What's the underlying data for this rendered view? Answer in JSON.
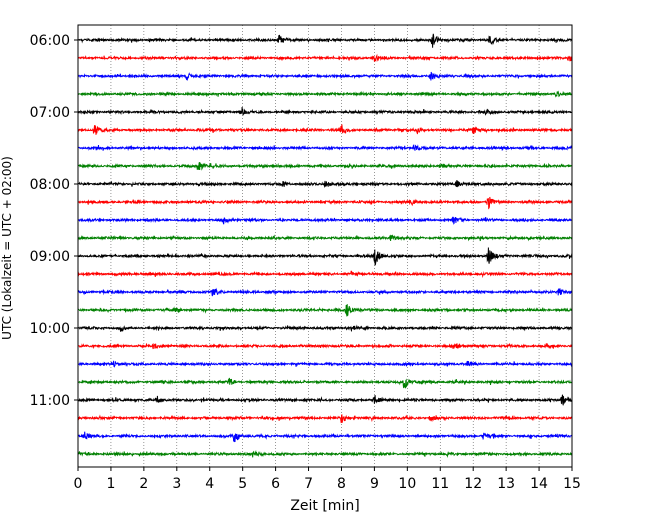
{
  "chart_data": {
    "type": "line",
    "title": "",
    "xlabel": "Zeit  [min]",
    "ylabel": "UTC (Lokalzeit = UTC + 02:00)",
    "xlim": [
      0,
      15
    ],
    "x_ticks": [
      0,
      1,
      2,
      3,
      4,
      5,
      6,
      7,
      8,
      9,
      10,
      11,
      12,
      13,
      14,
      15
    ],
    "y_tick_labels": [
      "06:00",
      "07:00",
      "08:00",
      "09:00",
      "10:00",
      "11:00"
    ],
    "grid": "vertical-dotted",
    "legend": "none",
    "colors": [
      "#000000",
      "#ff0000",
      "#0000ff",
      "#008000"
    ],
    "trace_interval_minutes": 15,
    "traces": [
      {
        "start": "06:00",
        "color": "#000000",
        "events": [
          [
            6.1,
            1.0
          ],
          [
            10.75,
            1.3
          ],
          [
            12.5,
            0.7
          ]
        ]
      },
      {
        "start": "06:15",
        "color": "#ff0000",
        "events": [
          [
            9.0,
            0.4
          ],
          [
            14.9,
            0.6
          ]
        ]
      },
      {
        "start": "06:30",
        "color": "#0000ff",
        "events": [
          [
            10.7,
            0.8
          ],
          [
            3.3,
            0.5
          ]
        ]
      },
      {
        "start": "06:45",
        "color": "#008000",
        "events": [
          [
            14.5,
            0.4
          ]
        ]
      },
      {
        "start": "07:00",
        "color": "#000000",
        "events": [
          [
            4.95,
            0.8
          ],
          [
            12.4,
            0.4
          ]
        ]
      },
      {
        "start": "07:15",
        "color": "#ff0000",
        "events": [
          [
            0.5,
            0.9
          ],
          [
            8.0,
            0.6
          ],
          [
            10.3,
            0.5
          ],
          [
            12.0,
            0.5
          ]
        ]
      },
      {
        "start": "07:30",
        "color": "#0000ff",
        "events": [
          [
            10.2,
            0.5
          ]
        ]
      },
      {
        "start": "07:45",
        "color": "#008000",
        "events": [
          [
            3.65,
            1.1
          ],
          [
            11.0,
            0.4
          ]
        ]
      },
      {
        "start": "08:00",
        "color": "#000000",
        "events": [
          [
            6.2,
            0.6
          ],
          [
            7.5,
            0.7
          ],
          [
            11.5,
            0.5
          ]
        ]
      },
      {
        "start": "08:15",
        "color": "#ff0000",
        "events": [
          [
            10.1,
            0.5
          ],
          [
            12.45,
            1.0
          ]
        ]
      },
      {
        "start": "08:30",
        "color": "#0000ff",
        "events": [
          [
            4.4,
            0.6
          ],
          [
            11.4,
            0.5
          ]
        ]
      },
      {
        "start": "08:45",
        "color": "#008000",
        "events": [
          [
            9.5,
            0.5
          ]
        ]
      },
      {
        "start": "09:00",
        "color": "#000000",
        "events": [
          [
            9.0,
            1.6
          ],
          [
            12.45,
            1.5
          ]
        ]
      },
      {
        "start": "09:15",
        "color": "#ff0000",
        "events": [
          [
            8.3,
            0.3
          ]
        ]
      },
      {
        "start": "09:30",
        "color": "#0000ff",
        "events": [
          [
            4.1,
            0.7
          ],
          [
            14.6,
            0.6
          ]
        ]
      },
      {
        "start": "09:45",
        "color": "#008000",
        "events": [
          [
            8.15,
            1.0
          ],
          [
            2.9,
            0.5
          ]
        ]
      },
      {
        "start": "10:00",
        "color": "#000000",
        "events": [
          [
            8.3,
            0.4
          ],
          [
            1.3,
            0.4
          ]
        ]
      },
      {
        "start": "10:15",
        "color": "#ff0000",
        "events": [
          [
            2.3,
            0.5
          ],
          [
            11.5,
            0.4
          ]
        ]
      },
      {
        "start": "10:30",
        "color": "#0000ff",
        "events": [
          [
            1.1,
            0.6
          ],
          [
            11.8,
            0.4
          ]
        ]
      },
      {
        "start": "10:45",
        "color": "#008000",
        "events": [
          [
            9.9,
            1.0
          ],
          [
            4.6,
            0.5
          ]
        ]
      },
      {
        "start": "11:00",
        "color": "#000000",
        "events": [
          [
            14.7,
            0.9
          ],
          [
            9.0,
            0.5
          ],
          [
            2.4,
            0.5
          ]
        ]
      },
      {
        "start": "11:15",
        "color": "#ff0000",
        "events": [
          [
            8.0,
            0.7
          ],
          [
            10.7,
            0.5
          ]
        ]
      },
      {
        "start": "11:30",
        "color": "#0000ff",
        "events": [
          [
            4.75,
            1.1
          ],
          [
            0.2,
            0.5
          ],
          [
            12.3,
            0.4
          ]
        ]
      },
      {
        "start": "11:45",
        "color": "#008000",
        "events": [
          [
            5.3,
            0.4
          ]
        ]
      }
    ]
  }
}
